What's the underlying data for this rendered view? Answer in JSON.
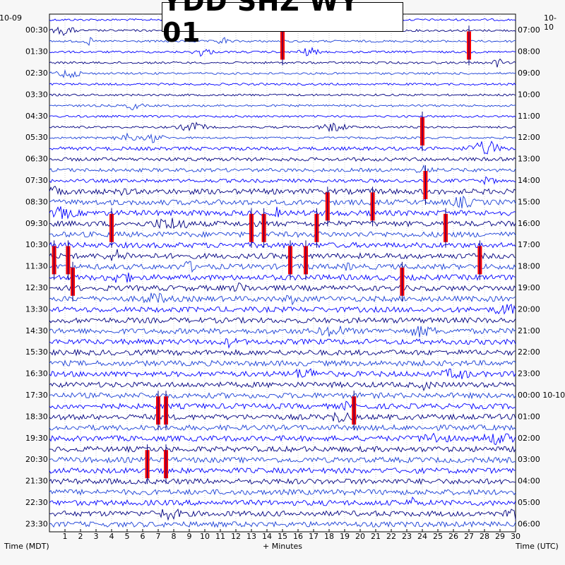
{
  "chart_data": {
    "type": "line",
    "title": "YDD SHZ WY 01",
    "left_date": "10-09",
    "right_date": "10-10",
    "xlabel_center": "+ Minutes",
    "xlabel_left": "Time (MDT)",
    "xlabel_right": "Time (UTC)",
    "xlim": [
      0,
      30
    ],
    "x_ticks": [
      "1",
      "2",
      "3",
      "4",
      "5",
      "6",
      "7",
      "8",
      "9",
      "10",
      "11",
      "12",
      "13",
      "14",
      "15",
      "16",
      "17",
      "18",
      "19",
      "20",
      "21",
      "22",
      "23",
      "24",
      "25",
      "26",
      "27",
      "28",
      "29",
      "30"
    ],
    "left_ticks": [
      "00:30",
      "01:30",
      "02:30",
      "03:30",
      "04:30",
      "05:30",
      "06:30",
      "07:30",
      "08:30",
      "09:30",
      "10:30",
      "11:30",
      "12:30",
      "13:30",
      "14:30",
      "15:30",
      "16:30",
      "17:30",
      "18:30",
      "19:30",
      "20:30",
      "21:30",
      "22:30",
      "23:30"
    ],
    "right_ticks": [
      "07:00",
      "08:00",
      "09:00",
      "10:00",
      "11:00",
      "12:00",
      "13:00",
      "14:00",
      "15:00",
      "16:00",
      "17:00",
      "18:00",
      "19:00",
      "20:00",
      "21:00",
      "22:00",
      "23:00",
      "00:00 10-10",
      "01:00",
      "02:00",
      "03:00",
      "04:00",
      "05:00",
      "06:00"
    ],
    "trace_rows": 48,
    "colors": {
      "trace_a": "#0000ff",
      "trace_b": "#000080",
      "trace_c": "#1a3fd6",
      "clip": "#ff0000",
      "grid": "#b0b0b0"
    },
    "clipped_events": [
      {
        "row": 2,
        "minute": 15.0
      },
      {
        "row": 2,
        "minute": 27.0
      },
      {
        "row": 10,
        "minute": 24.0
      },
      {
        "row": 15,
        "minute": 24.2
      },
      {
        "row": 17,
        "minute": 17.9
      },
      {
        "row": 17,
        "minute": 20.8
      },
      {
        "row": 19,
        "minute": 4.0
      },
      {
        "row": 19,
        "minute": 13.0
      },
      {
        "row": 19,
        "minute": 13.8
      },
      {
        "row": 19,
        "minute": 17.2
      },
      {
        "row": 19,
        "minute": 25.5
      },
      {
        "row": 22,
        "minute": 0.3
      },
      {
        "row": 22,
        "minute": 1.2
      },
      {
        "row": 22,
        "minute": 15.5
      },
      {
        "row": 22,
        "minute": 16.5
      },
      {
        "row": 22,
        "minute": 27.7
      },
      {
        "row": 24,
        "minute": 1.5
      },
      {
        "row": 24,
        "minute": 22.7
      },
      {
        "row": 36,
        "minute": 7.0
      },
      {
        "row": 36,
        "minute": 7.5
      },
      {
        "row": 36,
        "minute": 19.6
      },
      {
        "row": 41,
        "minute": 6.3
      },
      {
        "row": 41,
        "minute": 7.5
      }
    ]
  }
}
